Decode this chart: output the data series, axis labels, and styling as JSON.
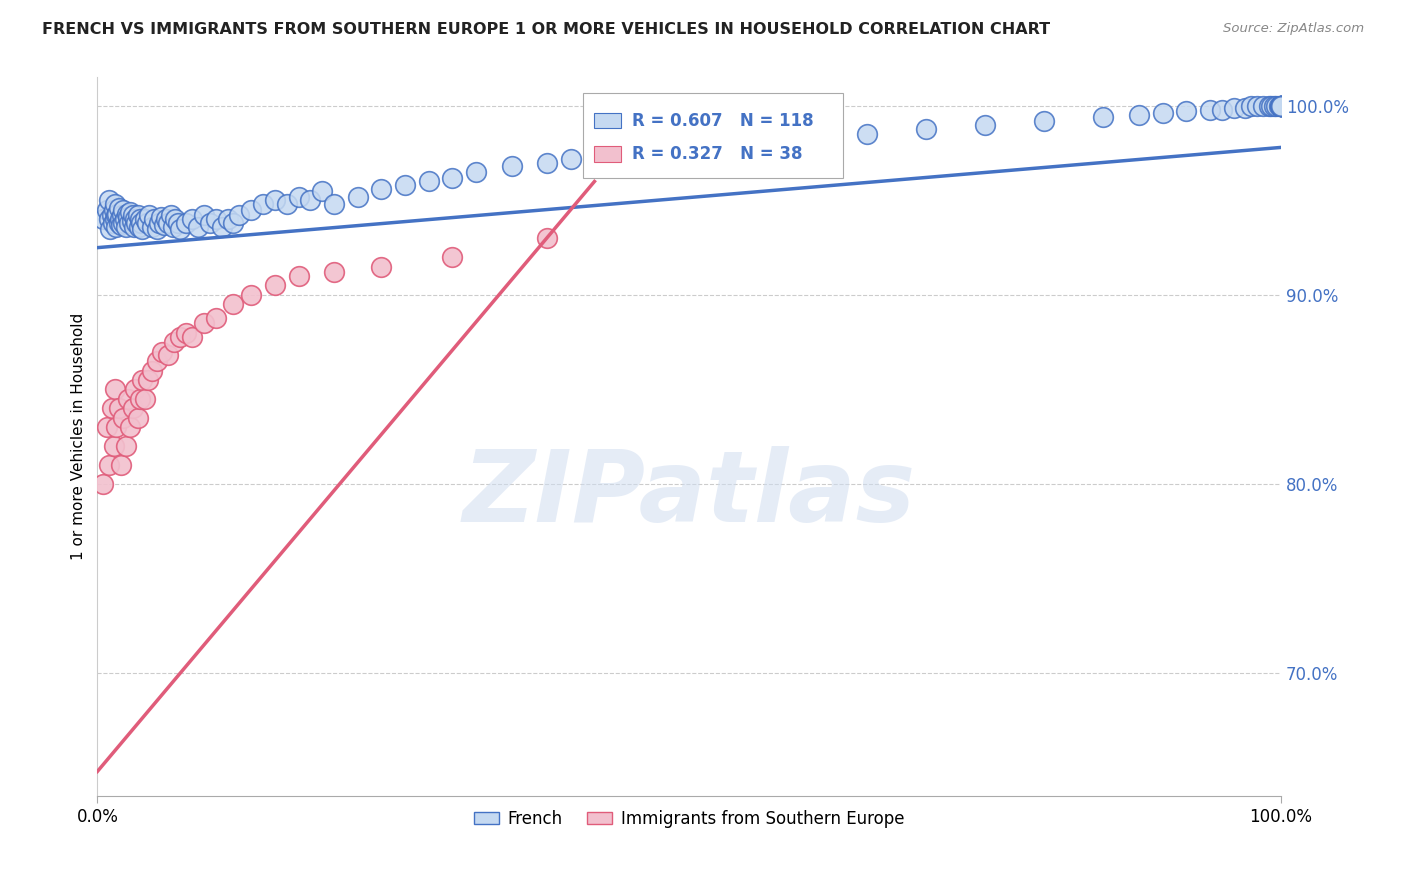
{
  "title": "FRENCH VS IMMIGRANTS FROM SOUTHERN EUROPE 1 OR MORE VEHICLES IN HOUSEHOLD CORRELATION CHART",
  "source": "Source: ZipAtlas.com",
  "ylabel": "1 or more Vehicles in Household",
  "r_french": 0.607,
  "n_french": 118,
  "r_immigrants": 0.327,
  "n_immigrants": 38,
  "color_french_fill": "#c5d9f1",
  "color_french_edge": "#4472c4",
  "color_immigrants_fill": "#f2c0ce",
  "color_immigrants_edge": "#e05c7a",
  "color_french_line": "#4472c4",
  "color_immigrants_line": "#e05c7a",
  "xlim": [
    0.0,
    1.0
  ],
  "ylim": [
    0.635,
    1.015
  ],
  "ytick_values": [
    0.7,
    0.8,
    0.9,
    1.0
  ],
  "ytick_labels": [
    "70.0%",
    "80.0%",
    "90.0%",
    "100.0%"
  ],
  "french_trend": [
    0.0,
    1.0,
    0.925,
    0.978
  ],
  "immigrants_trend": [
    0.0,
    0.42,
    0.648,
    0.96
  ],
  "french_x": [
    0.005,
    0.008,
    0.01,
    0.01,
    0.011,
    0.012,
    0.013,
    0.014,
    0.015,
    0.015,
    0.016,
    0.016,
    0.017,
    0.018,
    0.018,
    0.019,
    0.02,
    0.021,
    0.022,
    0.022,
    0.023,
    0.024,
    0.025,
    0.026,
    0.027,
    0.028,
    0.029,
    0.03,
    0.031,
    0.032,
    0.033,
    0.034,
    0.035,
    0.036,
    0.037,
    0.038,
    0.04,
    0.042,
    0.044,
    0.046,
    0.048,
    0.05,
    0.052,
    0.054,
    0.056,
    0.058,
    0.06,
    0.062,
    0.064,
    0.066,
    0.068,
    0.07,
    0.075,
    0.08,
    0.085,
    0.09,
    0.095,
    0.1,
    0.105,
    0.11,
    0.115,
    0.12,
    0.13,
    0.14,
    0.15,
    0.16,
    0.17,
    0.18,
    0.19,
    0.2,
    0.22,
    0.24,
    0.26,
    0.28,
    0.3,
    0.32,
    0.35,
    0.38,
    0.4,
    0.43,
    0.46,
    0.5,
    0.55,
    0.6,
    0.65,
    0.7,
    0.75,
    0.8,
    0.85,
    0.88,
    0.9,
    0.92,
    0.94,
    0.95,
    0.96,
    0.97,
    0.975,
    0.98,
    0.985,
    0.99,
    0.992,
    0.994,
    0.996,
    0.998,
    0.999,
    1.0,
    1.0,
    1.0,
    1.0,
    1.0,
    1.0,
    1.0,
    1.0,
    1.0,
    1.0,
    1.0,
    1.0,
    1.0
  ],
  "french_y": [
    0.94,
    0.945,
    0.94,
    0.95,
    0.935,
    0.942,
    0.938,
    0.945,
    0.94,
    0.948,
    0.942,
    0.936,
    0.943,
    0.938,
    0.946,
    0.94,
    0.937,
    0.942,
    0.945,
    0.938,
    0.94,
    0.936,
    0.943,
    0.941,
    0.938,
    0.944,
    0.939,
    0.942,
    0.936,
    0.94,
    0.938,
    0.942,
    0.936,
    0.94,
    0.938,
    0.935,
    0.94,
    0.938,
    0.942,
    0.936,
    0.94,
    0.935,
    0.938,
    0.941,
    0.937,
    0.94,
    0.938,
    0.942,
    0.936,
    0.94,
    0.938,
    0.935,
    0.938,
    0.94,
    0.936,
    0.942,
    0.938,
    0.94,
    0.936,
    0.94,
    0.938,
    0.942,
    0.945,
    0.948,
    0.95,
    0.948,
    0.952,
    0.95,
    0.955,
    0.948,
    0.952,
    0.956,
    0.958,
    0.96,
    0.962,
    0.965,
    0.968,
    0.97,
    0.972,
    0.975,
    0.978,
    0.98,
    0.982,
    0.985,
    0.985,
    0.988,
    0.99,
    0.992,
    0.994,
    0.995,
    0.996,
    0.997,
    0.998,
    0.998,
    0.999,
    0.999,
    1.0,
    1.0,
    1.0,
    1.0,
    1.0,
    1.0,
    1.0,
    1.0,
    1.0,
    1.0,
    1.0,
    1.0,
    1.0,
    1.0,
    1.0,
    1.0,
    1.0,
    1.0,
    1.0,
    1.0,
    1.0,
    1.0
  ],
  "immigrants_x": [
    0.005,
    0.008,
    0.01,
    0.012,
    0.014,
    0.015,
    0.016,
    0.018,
    0.02,
    0.022,
    0.024,
    0.026,
    0.028,
    0.03,
    0.032,
    0.034,
    0.036,
    0.038,
    0.04,
    0.043,
    0.046,
    0.05,
    0.055,
    0.06,
    0.065,
    0.07,
    0.075,
    0.08,
    0.09,
    0.1,
    0.115,
    0.13,
    0.15,
    0.17,
    0.2,
    0.24,
    0.3,
    0.38
  ],
  "immigrants_y": [
    0.8,
    0.83,
    0.81,
    0.84,
    0.82,
    0.85,
    0.83,
    0.84,
    0.81,
    0.835,
    0.82,
    0.845,
    0.83,
    0.84,
    0.85,
    0.835,
    0.845,
    0.855,
    0.845,
    0.855,
    0.86,
    0.865,
    0.87,
    0.868,
    0.875,
    0.878,
    0.88,
    0.878,
    0.885,
    0.888,
    0.895,
    0.9,
    0.905,
    0.91,
    0.912,
    0.915,
    0.92,
    0.93
  ],
  "watermark_text": "ZIPatlas",
  "legend_french": "French",
  "legend_immigrants": "Immigrants from Southern Europe"
}
